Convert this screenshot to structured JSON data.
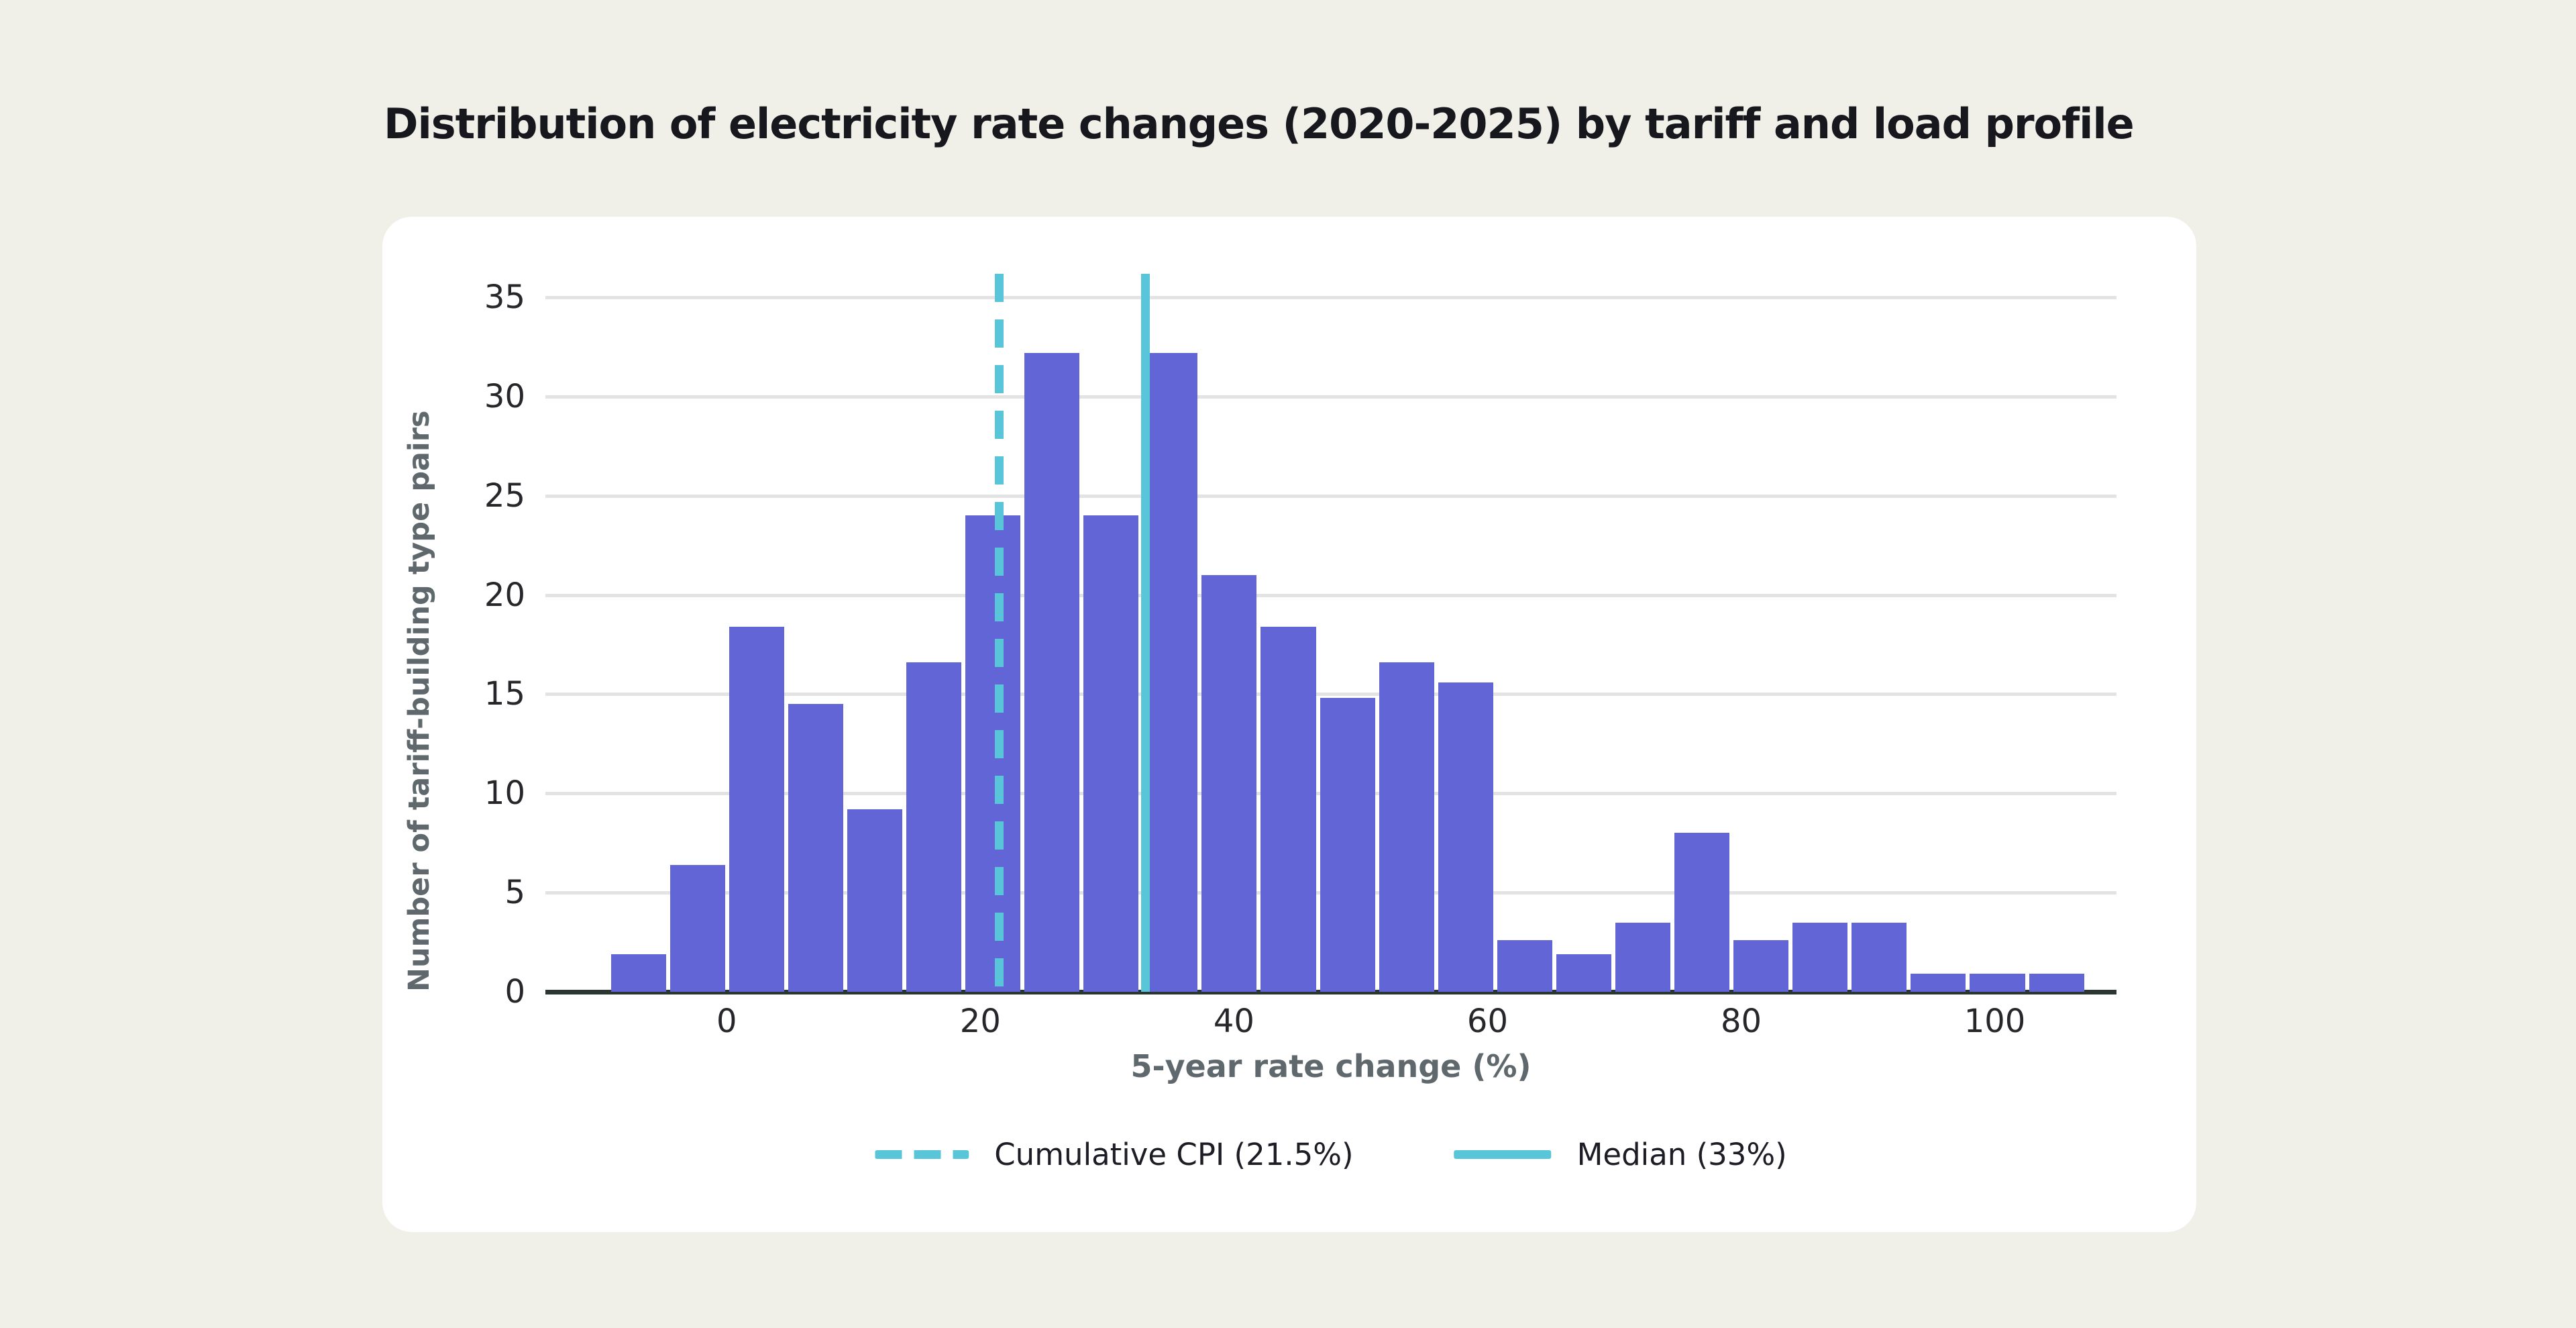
{
  "title": "Distribution of electricity rate changes (2020-2025) by tariff and load profile",
  "colors": {
    "page_background": "#f0efe8",
    "card_background": "#ffffff",
    "bar": "#6165d6",
    "reference_line": "#58c5d9",
    "gridline": "#e3e3e3",
    "axis_line": "#2b3633",
    "tick_text": "#26262b",
    "axis_title_text": "#5f686d",
    "title_text": "#17171e"
  },
  "chart_data": {
    "type": "bar",
    "subtype": "histogram",
    "title": "Distribution of electricity rate changes (2020-2025) by tariff and load profile",
    "xlabel": "5-year rate change (%)",
    "ylabel": "Number of tariff-building type pairs",
    "bin_start": -9.3,
    "bin_width": 4.66,
    "values": [
      1.9,
      6.4,
      18.4,
      14.5,
      9.2,
      16.6,
      24,
      32.2,
      24,
      32.2,
      21,
      18.4,
      14.8,
      16.6,
      15.6,
      2.6,
      1.9,
      3.5,
      8,
      2.6,
      3.5,
      3.5,
      0.9,
      0.9,
      0.9
    ],
    "x_ticks": [
      0,
      20,
      40,
      60,
      80,
      100
    ],
    "y_ticks": [
      0,
      5,
      10,
      15,
      20,
      25,
      30,
      35
    ],
    "x_range": [
      -14.3,
      109.6
    ],
    "y_range": [
      0,
      35
    ],
    "grid": "horizontal-only",
    "legend_position": "bottom",
    "ref_lines": [
      {
        "value": 21.5,
        "style": "dashed",
        "label": "Cumulative CPI (21.5%)"
      },
      {
        "value": 33,
        "style": "solid",
        "label": "Median (33%)"
      }
    ]
  },
  "legend": {
    "items": [
      {
        "style": "dashed",
        "label": "Cumulative CPI (21.5%)"
      },
      {
        "style": "solid",
        "label": "Median (33%)"
      }
    ]
  }
}
